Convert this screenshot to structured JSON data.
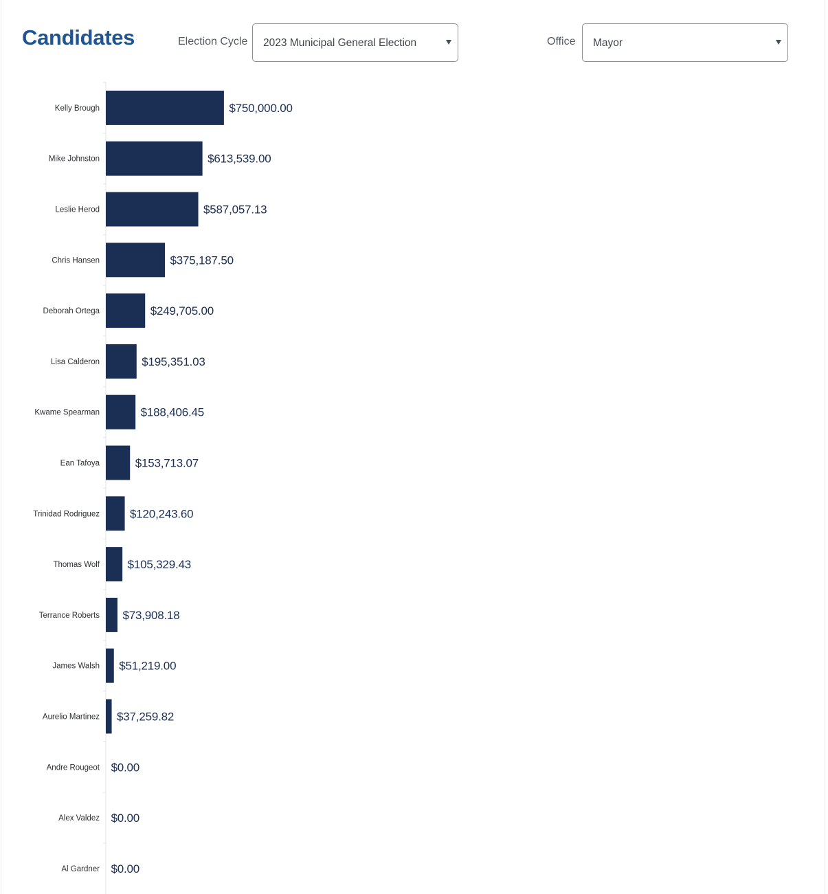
{
  "header": {
    "title": "Candidates"
  },
  "filters": {
    "election_cycle": {
      "label": "Election Cycle",
      "value": "2023 Municipal General Election"
    },
    "office": {
      "label": "Office",
      "value": "Mayor"
    }
  },
  "colors": {
    "title": "#1f5591",
    "bar": "#1b2f55"
  },
  "icons": {
    "dropdown": "caret-down-icon"
  },
  "chart_data": {
    "type": "bar",
    "orientation": "horizontal",
    "categories": [
      "Kelly Brough",
      "Mike Johnston",
      "Leslie Herod",
      "Chris Hansen",
      "Deborah Ortega",
      "Lisa Calderon",
      "Kwame Spearman",
      "Ean Tafoya",
      "Trinidad Rodriguez",
      "Thomas Wolf",
      "Terrance Roberts",
      "James Walsh",
      "Aurelio Martinez",
      "Andre Rougeot",
      "Alex Valdez",
      "Al Gardner"
    ],
    "values": [
      750000.0,
      613539.0,
      587057.13,
      375187.5,
      249705.0,
      195351.03,
      188406.45,
      153713.07,
      120243.6,
      105329.43,
      73908.18,
      51219.0,
      37259.82,
      0.0,
      0.0,
      0.0
    ],
    "value_labels": [
      "$750,000.00",
      "$613,539.00",
      "$587,057.13",
      "$375,187.50",
      "$249,705.00",
      "$195,351.03",
      "$188,406.45",
      "$153,713.07",
      "$120,243.60",
      "$105,329.43",
      "$73,908.18",
      "$51,219.00",
      "$37,259.82",
      "$0.00",
      "$0.00",
      "$0.00"
    ],
    "title": "",
    "xlabel": "",
    "ylabel": "",
    "xlim": [
      0,
      5000000
    ],
    "grid": false,
    "legend": "none"
  }
}
